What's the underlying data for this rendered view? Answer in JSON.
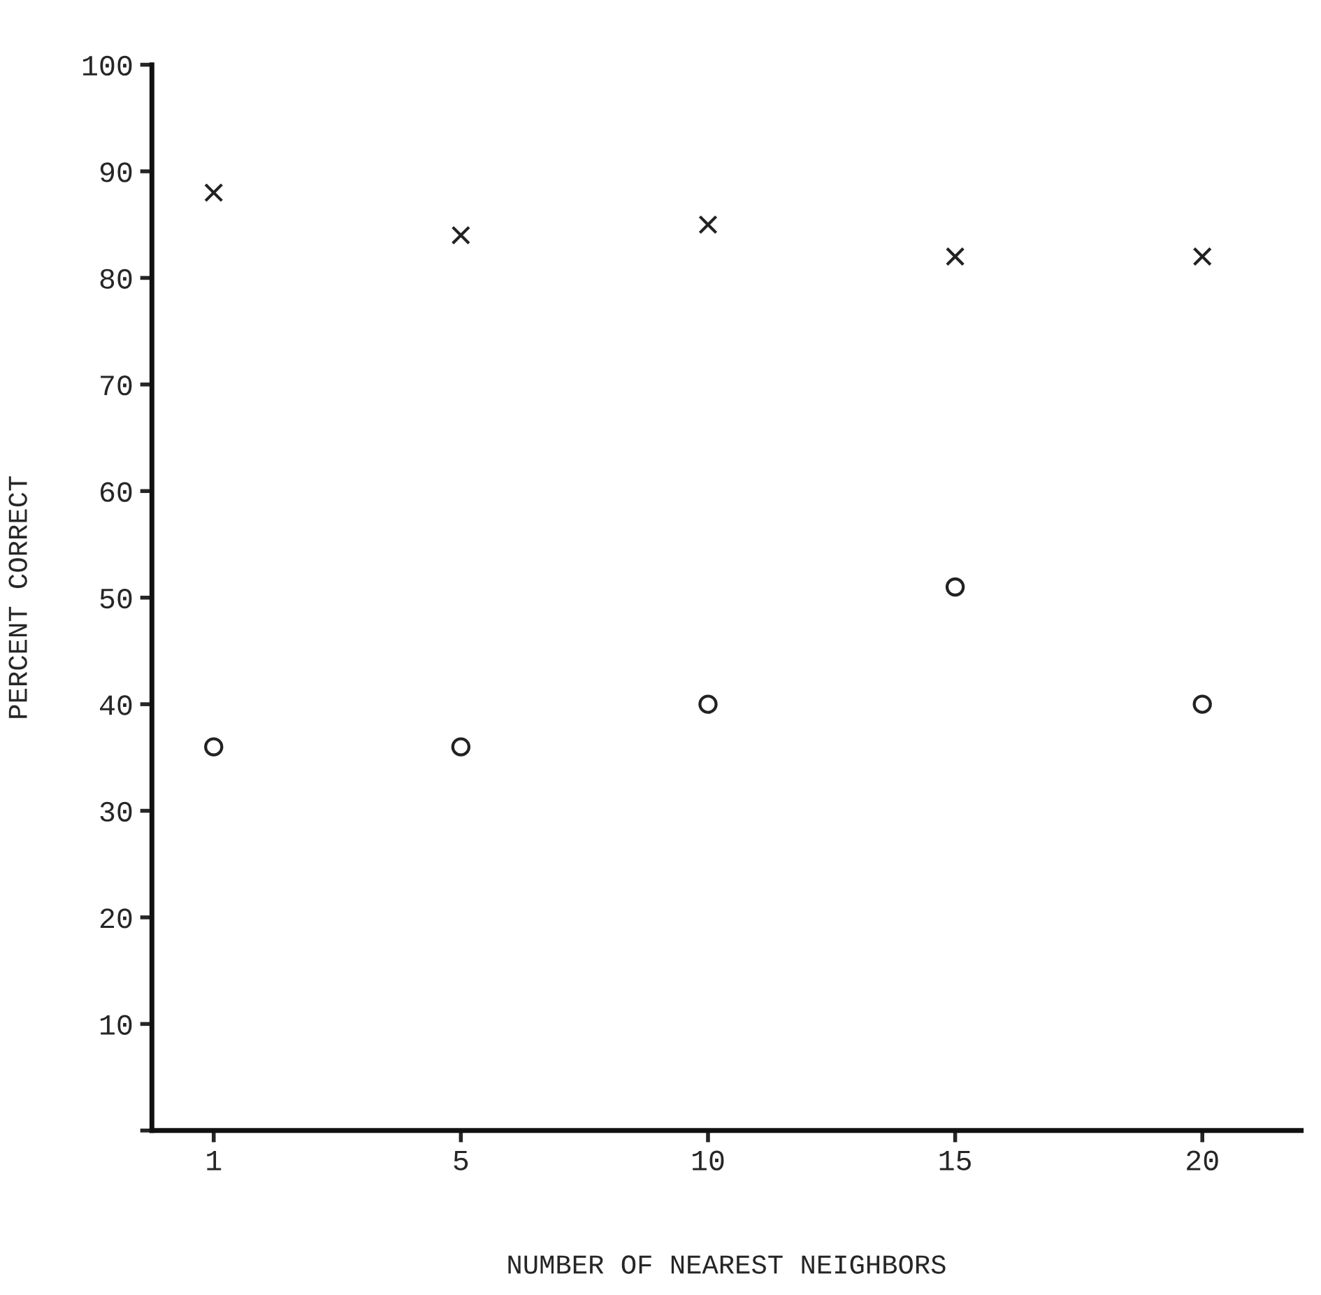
{
  "chart_data": {
    "type": "scatter",
    "xlabel": "NUMBER OF NEAREST NEIGHBORS",
    "ylabel": "PERCENT CORRECT",
    "categories": [
      "1",
      "5",
      "10",
      "15",
      "20"
    ],
    "series": [
      {
        "color": "#222222",
        "marker": "cross",
        "values": [
          88,
          84,
          85,
          82,
          82
        ]
      },
      {
        "color": "#222222",
        "marker": "circle",
        "values": [
          36,
          36,
          40,
          51,
          40
        ]
      }
    ],
    "ylim": [
      0,
      100
    ],
    "yticks": [
      {
        "value": 0,
        "label": null
      },
      10,
      20,
      30,
      40,
      50,
      60,
      70,
      80,
      90,
      100
    ],
    "grid": false
  }
}
